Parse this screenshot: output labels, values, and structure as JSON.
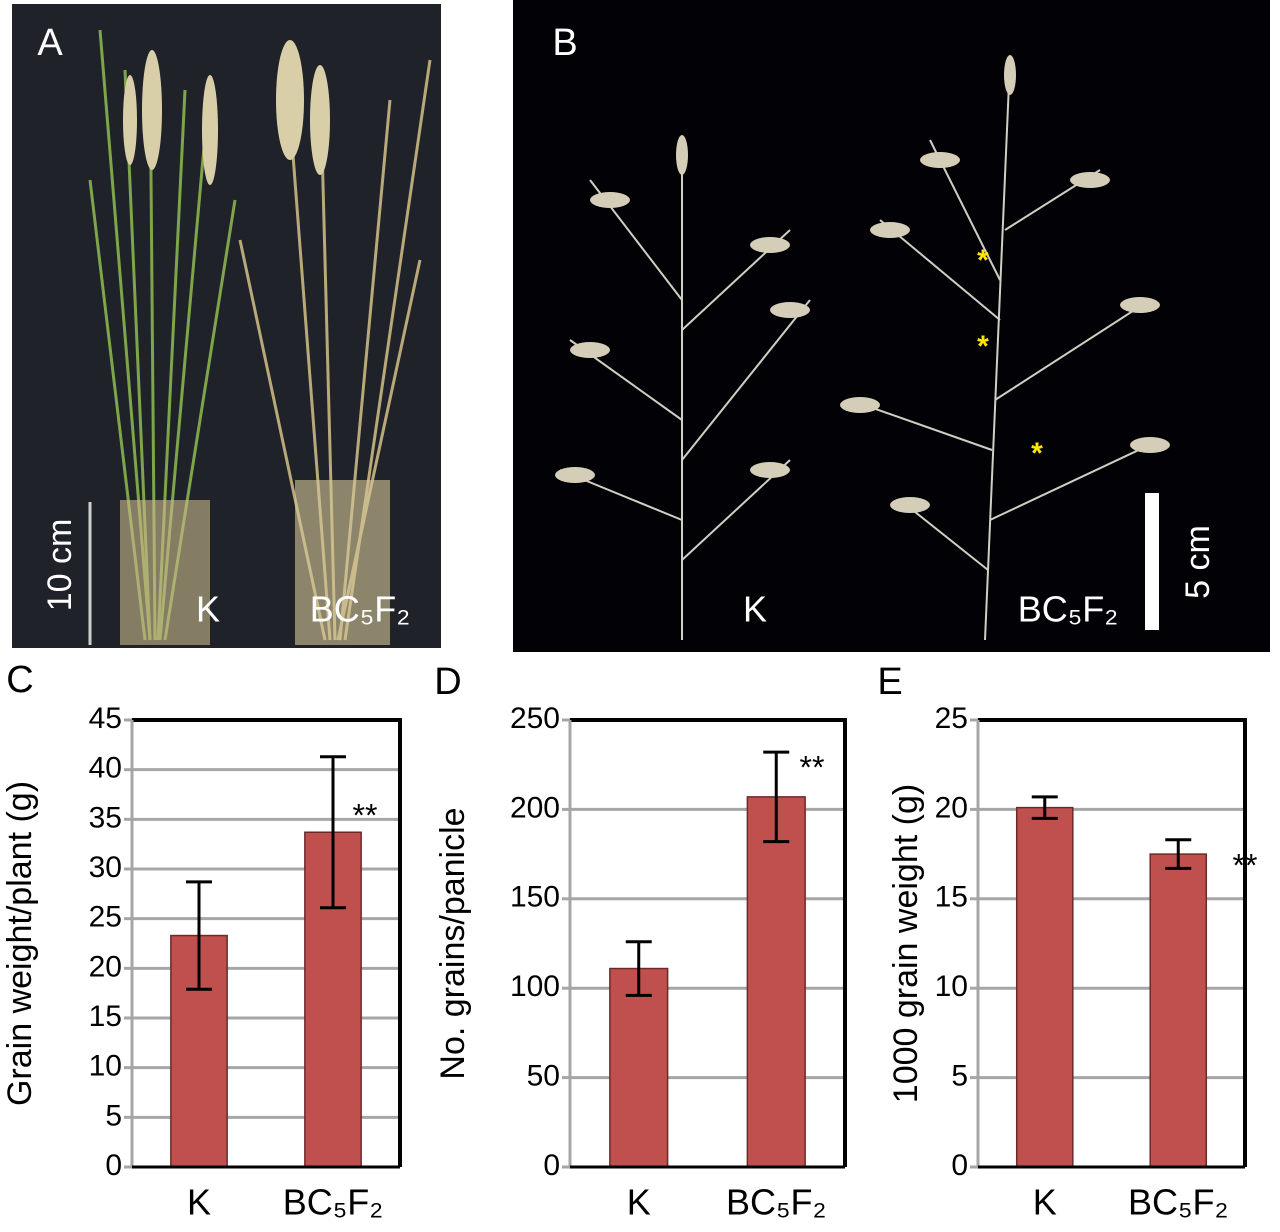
{
  "photos": [
    {
      "panel": "A",
      "labels": [
        "K",
        "BC₅F₂"
      ],
      "scale": "10 cm"
    },
    {
      "panel": "B",
      "labels": [
        "K",
        "BC₅F₂"
      ],
      "scale": "5 cm",
      "marks": [
        "*",
        "*",
        "*"
      ]
    }
  ],
  "chart_data": [
    {
      "type": "bar",
      "title": "C",
      "y_label": "Grain weight/plant (g)",
      "categories": [
        "K",
        "BC₅F₂"
      ],
      "series": [
        {
          "color": "#c0504d",
          "values": [
            23.3,
            33.7
          ],
          "errors": [
            5.4,
            7.6
          ]
        }
      ],
      "annotation": "**",
      "ylim": [
        0,
        45
      ],
      "yticks": [
        0,
        5,
        10,
        15,
        20,
        25,
        30,
        35,
        40,
        45
      ],
      "grid": true
    },
    {
      "type": "bar",
      "title": "D",
      "y_label": "No. grains/panicle",
      "categories": [
        "K",
        "BC₅F₂"
      ],
      "series": [
        {
          "color": "#c0504d",
          "values": [
            111,
            207
          ],
          "errors": [
            15,
            25
          ]
        }
      ],
      "annotation": "**",
      "ylim": [
        0,
        250
      ],
      "yticks": [
        0,
        50,
        100,
        150,
        200,
        250
      ],
      "grid": true
    },
    {
      "type": "bar",
      "title": "E",
      "y_label": "1000 grain weight (g)",
      "categories": [
        "K",
        "BC₅F₂"
      ],
      "series": [
        {
          "color": "#c0504d",
          "values": [
            20.1,
            17.5
          ],
          "errors": [
            0.6,
            0.8
          ]
        }
      ],
      "annotation": "**",
      "ylim": [
        0,
        25
      ],
      "yticks": [
        0,
        5,
        10,
        15,
        20,
        25
      ],
      "grid": true
    }
  ]
}
